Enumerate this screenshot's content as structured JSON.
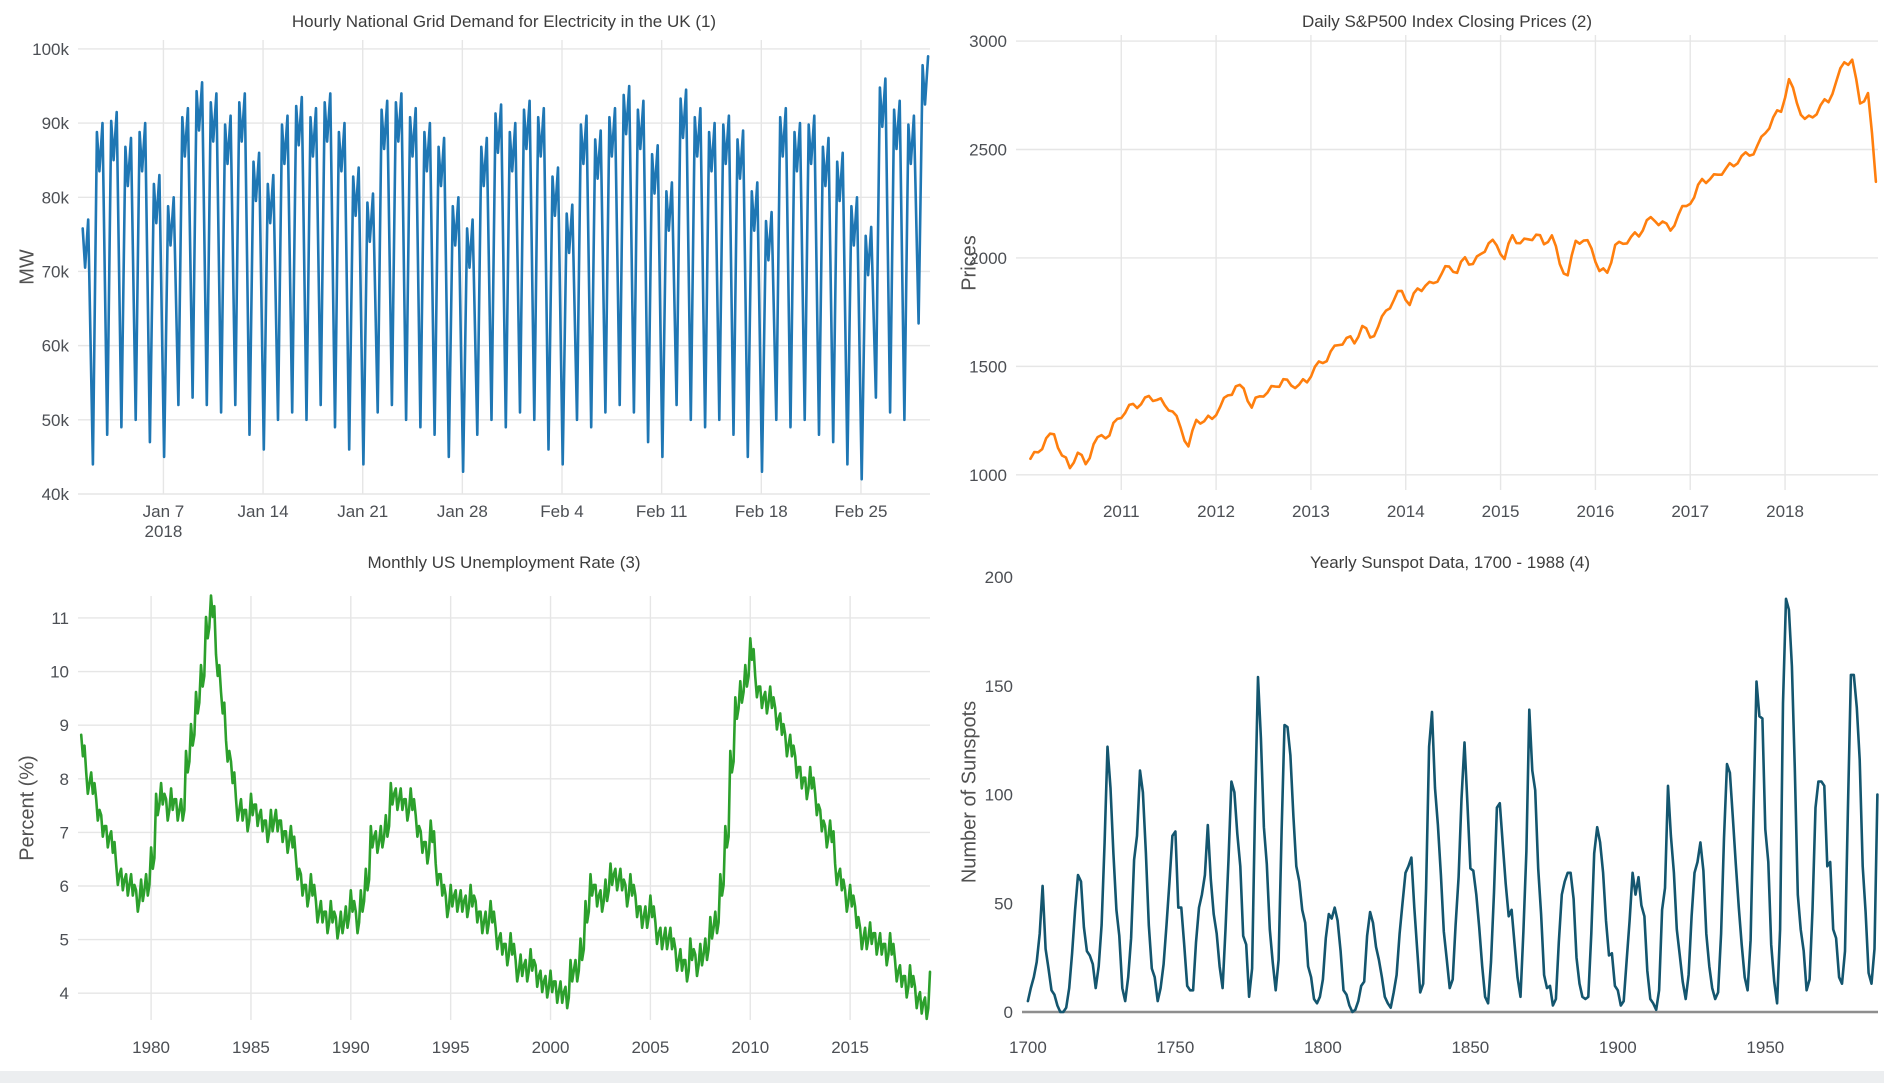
{
  "page": {
    "background": "#ffffff",
    "footer_strip_color": "#eceef0"
  },
  "chart_data": [
    {
      "type": "line",
      "title": "Hourly National Grid Demand for Electricity in the UK (1)",
      "ylabel": "MW",
      "xlabel": "",
      "color": "#1f77b4",
      "grid": true,
      "zeroline": false,
      "xlim": [
        0,
        59.85
      ],
      "ylim": [
        40,
        101.2
      ],
      "x_unit": "days since Jan 1 2018",
      "y_unit": "MW thousands",
      "x_ticks": {
        "positions": [
          6,
          13,
          20,
          27,
          34,
          41,
          48,
          55
        ],
        "labels": [
          "Jan 7",
          "Jan 14",
          "Jan 21",
          "Jan 28",
          "Feb 4",
          "Feb 11",
          "Feb 18",
          "Feb 25"
        ],
        "sub_label": "2018"
      },
      "y_ticks": {
        "positions": [
          40,
          50,
          60,
          70,
          80,
          90,
          100
        ],
        "labels": [
          "40k",
          "50k",
          "60k",
          "70k",
          "80k",
          "90k",
          "100k"
        ]
      },
      "daily_peak_mw_k": [
        77,
        90,
        91.5,
        88,
        90,
        83,
        80,
        92,
        95.5,
        94,
        91,
        94,
        86,
        83,
        91,
        93.5,
        92,
        94,
        90,
        84,
        80.5,
        93,
        94,
        92,
        90,
        88,
        80,
        77,
        88,
        92.5,
        90,
        93,
        92,
        84,
        79,
        91,
        89,
        92,
        95,
        93,
        87,
        82,
        94.5,
        92,
        90,
        91,
        89,
        82,
        78,
        92,
        90,
        91,
        88,
        86,
        80,
        76,
        96,
        93,
        91,
        99
      ],
      "daily_trough_mw_k": [
        43,
        44,
        48,
        49,
        50,
        47,
        45,
        52,
        53,
        52,
        51,
        52,
        48,
        46,
        50,
        51,
        50,
        52,
        49,
        46,
        44,
        51,
        52,
        50,
        49,
        48,
        45,
        43,
        48,
        50,
        49,
        51,
        50,
        46,
        44,
        50,
        49,
        51,
        52,
        51,
        47,
        45,
        52,
        50,
        49,
        50,
        48,
        45,
        43,
        50,
        49,
        50,
        48,
        47,
        44,
        42,
        53,
        51,
        50,
        63
      ]
    },
    {
      "type": "line",
      "title": "Daily S&P500 Index Closing Prices (2)",
      "ylabel": "Prices",
      "xlabel": "",
      "color": "#ff7f0e",
      "grid": true,
      "zeroline": false,
      "xlim": [
        2009.89,
        2018.98
      ],
      "ylim": [
        930,
        3028
      ],
      "x_ticks": {
        "positions": [
          2011,
          2012,
          2013,
          2014,
          2015,
          2016,
          2017,
          2018
        ],
        "labels": [
          "2011",
          "2012",
          "2013",
          "2014",
          "2015",
          "2016",
          "2017",
          "2018"
        ]
      },
      "y_ticks": {
        "positions": [
          1000,
          1500,
          2000,
          2500,
          3000
        ],
        "labels": [
          "1000",
          "1500",
          "2000",
          "2500",
          "3000"
        ]
      },
      "x_start_year": 2010,
      "interval": "monthly",
      "values": [
        1074,
        1104,
        1169,
        1187,
        1089,
        1031,
        1102,
        1049,
        1141,
        1183,
        1181,
        1258,
        1286,
        1327,
        1325,
        1364,
        1345,
        1321,
        1292,
        1219,
        1131,
        1253,
        1247,
        1258,
        1312,
        1366,
        1408,
        1398,
        1310,
        1362,
        1379,
        1407,
        1441,
        1412,
        1416,
        1426,
        1498,
        1515,
        1569,
        1598,
        1631,
        1606,
        1686,
        1633,
        1682,
        1757,
        1806,
        1848,
        1783,
        1859,
        1872,
        1884,
        1924,
        1960,
        1931,
        2003,
        1972,
        2018,
        2068,
        2059,
        1995,
        2105,
        2068,
        2086,
        2107,
        2063,
        2104,
        1972,
        1920,
        2079,
        2080,
        2044,
        1940,
        1932,
        2060,
        2065,
        2097,
        2099,
        2174,
        2171,
        2168,
        2126,
        2199,
        2239,
        2279,
        2364,
        2363,
        2384,
        2412,
        2423,
        2470,
        2472,
        2519,
        2575,
        2648,
        2674,
        2824,
        2714,
        2641,
        2648,
        2705,
        2718,
        2816,
        2902,
        2914,
        2712,
        2760,
        2351
      ]
    },
    {
      "type": "line",
      "title": "Monthly US Unemployment Rate (3)",
      "ylabel": "Percent (%)",
      "xlabel": "",
      "color": "#2ca02c",
      "grid": true,
      "zeroline": false,
      "xlim": [
        1976.34,
        2019.0
      ],
      "ylim": [
        3.5,
        11.41
      ],
      "x_ticks": {
        "positions": [
          1980,
          1985,
          1990,
          1995,
          2000,
          2005,
          2010,
          2015
        ],
        "labels": [
          "1980",
          "1985",
          "1990",
          "1995",
          "2000",
          "2005",
          "2010",
          "2015"
        ]
      },
      "y_ticks": {
        "positions": [
          4,
          5,
          6,
          7,
          8,
          9,
          10,
          11
        ],
        "labels": [
          "4",
          "5",
          "6",
          "7",
          "8",
          "9",
          "10",
          "11"
        ]
      },
      "x_start_year": 1976.5,
      "interval_years": 0.25,
      "values": [
        8.6,
        7.9,
        7.9,
        7.4,
        7.1,
        6.9,
        6.8,
        6.2,
        6.1,
        6.0,
        6.0,
        5.7,
        5.9,
        6.0,
        6.5,
        7.5,
        7.7,
        7.4,
        7.6,
        7.4,
        7.4,
        8.3,
        8.8,
        9.4,
        9.9,
        10.8,
        11.2,
        10.1,
        9.4,
        8.5,
        8.1,
        7.4,
        7.4,
        7.2,
        7.5,
        7.3,
        7.2,
        7.0,
        7.2,
        7.2,
        7.0,
        6.8,
        6.9,
        6.3,
        6.0,
        5.8,
        6.0,
        5.5,
        5.5,
        5.3,
        5.5,
        5.2,
        5.3,
        5.4,
        5.7,
        5.3,
        5.7,
        6.1,
        6.9,
        6.8,
        6.9,
        7.1,
        7.7,
        7.6,
        7.6,
        7.4,
        7.6,
        7.1,
        6.8,
        6.6,
        7.0,
        6.2,
        6.0,
        5.6,
        5.8,
        5.7,
        5.7,
        5.6,
        5.8,
        5.5,
        5.3,
        5.3,
        5.5,
        5.0,
        4.9,
        4.7,
        4.9,
        4.4,
        4.5,
        4.4,
        4.6,
        4.3,
        4.2,
        4.1,
        4.2,
        4.0,
        4.0,
        3.9,
        4.4,
        4.4,
        4.8,
        5.5,
        6.0,
        5.8,
        5.7,
        5.9,
        6.2,
        6.1,
        6.1,
        5.8,
        6.0,
        5.6,
        5.4,
        5.4,
        5.6,
        5.1,
        5.0,
        5.0,
        5.0,
        4.6,
        4.6,
        4.4,
        4.8,
        4.5,
        4.7,
        4.8,
        5.2,
        5.3,
        6.0,
        6.9,
        8.3,
        9.3,
        9.6,
        9.9,
        10.4,
        9.7,
        9.5,
        9.4,
        9.5,
        9.1,
        9.0,
        8.6,
        8.6,
        8.2,
        8.0,
        7.8,
        8.0,
        7.5,
        7.2,
        6.9,
        7.0,
        6.2,
        6.1,
        5.7,
        5.8,
        5.4,
        5.0,
        5.0,
        5.1,
        4.9,
        4.9,
        4.7,
        4.9,
        4.4,
        4.3,
        4.1,
        4.3,
        3.9,
        3.8,
        3.7,
        4.4
      ]
    },
    {
      "type": "line",
      "title": "Yearly Sunspot Data, 1700 - 1988 (4)",
      "ylabel": "Number of Sunspots",
      "xlabel": "",
      "color": "#14566f",
      "grid": false,
      "zeroline": true,
      "zeroline_color": "#8e8e8e",
      "xlim": [
        1698,
        1988.2
      ],
      "ylim": [
        0,
        202.8
      ],
      "x_ticks": {
        "positions": [
          1700,
          1750,
          1800,
          1850,
          1900,
          1950
        ],
        "labels": [
          "1700",
          "1750",
          "1800",
          "1850",
          "1900",
          "1950"
        ]
      },
      "y_ticks": {
        "positions": [
          0,
          50,
          100,
          150,
          200
        ],
        "labels": [
          "0",
          "50",
          "100",
          "150",
          "200"
        ]
      },
      "x_start_year": 1700,
      "interval_years": 1,
      "values": [
        5,
        11,
        16,
        23,
        36,
        58,
        29,
        20,
        10,
        8,
        3,
        0,
        0,
        2,
        11,
        27,
        47,
        63,
        60,
        39,
        28,
        26,
        22,
        11,
        21,
        40,
        78,
        122,
        103,
        73,
        47,
        35,
        11,
        5,
        16,
        34,
        70,
        81,
        111,
        101,
        73,
        40,
        20,
        16,
        5,
        11,
        22,
        40,
        60,
        81,
        83,
        48,
        48,
        31,
        12,
        10,
        10,
        32,
        48,
        54,
        63,
        86,
        61,
        45,
        36,
        21,
        11,
        38,
        70,
        106,
        101,
        82,
        67,
        35,
        31,
        7,
        20,
        93,
        154,
        126,
        85,
        68,
        38,
        23,
        10,
        24,
        83,
        132,
        131,
        118,
        90,
        67,
        60,
        47,
        41,
        21,
        16,
        6,
        4,
        7,
        15,
        34,
        45,
        43,
        48,
        42,
        28,
        10,
        8,
        3,
        0,
        1,
        5,
        12,
        14,
        35,
        46,
        41,
        30,
        24,
        16,
        7,
        4,
        2,
        9,
        17,
        36,
        50,
        64,
        67,
        71,
        48,
        28,
        9,
        13,
        57,
        122,
        138,
        103,
        86,
        63,
        37,
        24,
        11,
        15,
        40,
        62,
        98,
        124,
        96,
        66,
        65,
        54,
        39,
        21,
        7,
        4,
        23,
        55,
        94,
        96,
        77,
        59,
        44,
        47,
        31,
        16,
        7,
        37,
        74,
        139,
        111,
        102,
        66,
        45,
        17,
        11,
        12,
        3,
        6,
        32,
        54,
        60,
        64,
        64,
        52,
        25,
        13,
        7,
        6,
        7,
        36,
        73,
        85,
        78,
        64,
        42,
        26,
        27,
        12,
        10,
        3,
        5,
        24,
        42,
        64,
        54,
        62,
        49,
        44,
        19,
        6,
        4,
        1,
        10,
        47,
        57,
        104,
        81,
        64,
        38,
        26,
        14,
        6,
        17,
        44,
        64,
        69,
        78,
        65,
        36,
        21,
        11,
        6,
        9,
        36,
        80,
        114,
        110,
        89,
        68,
        48,
        31,
        16,
        10,
        33,
        93,
        152,
        136,
        135,
        84,
        69,
        31,
        14,
        4,
        38,
        142,
        190,
        185,
        159,
        112,
        54,
        38,
        28,
        10,
        15,
        47,
        94,
        106,
        106,
        104,
        67,
        69,
        38,
        34,
        16,
        13,
        28,
        93,
        155,
        155,
        140,
        116,
        67,
        46,
        18,
        13,
        29,
        100
      ]
    }
  ]
}
